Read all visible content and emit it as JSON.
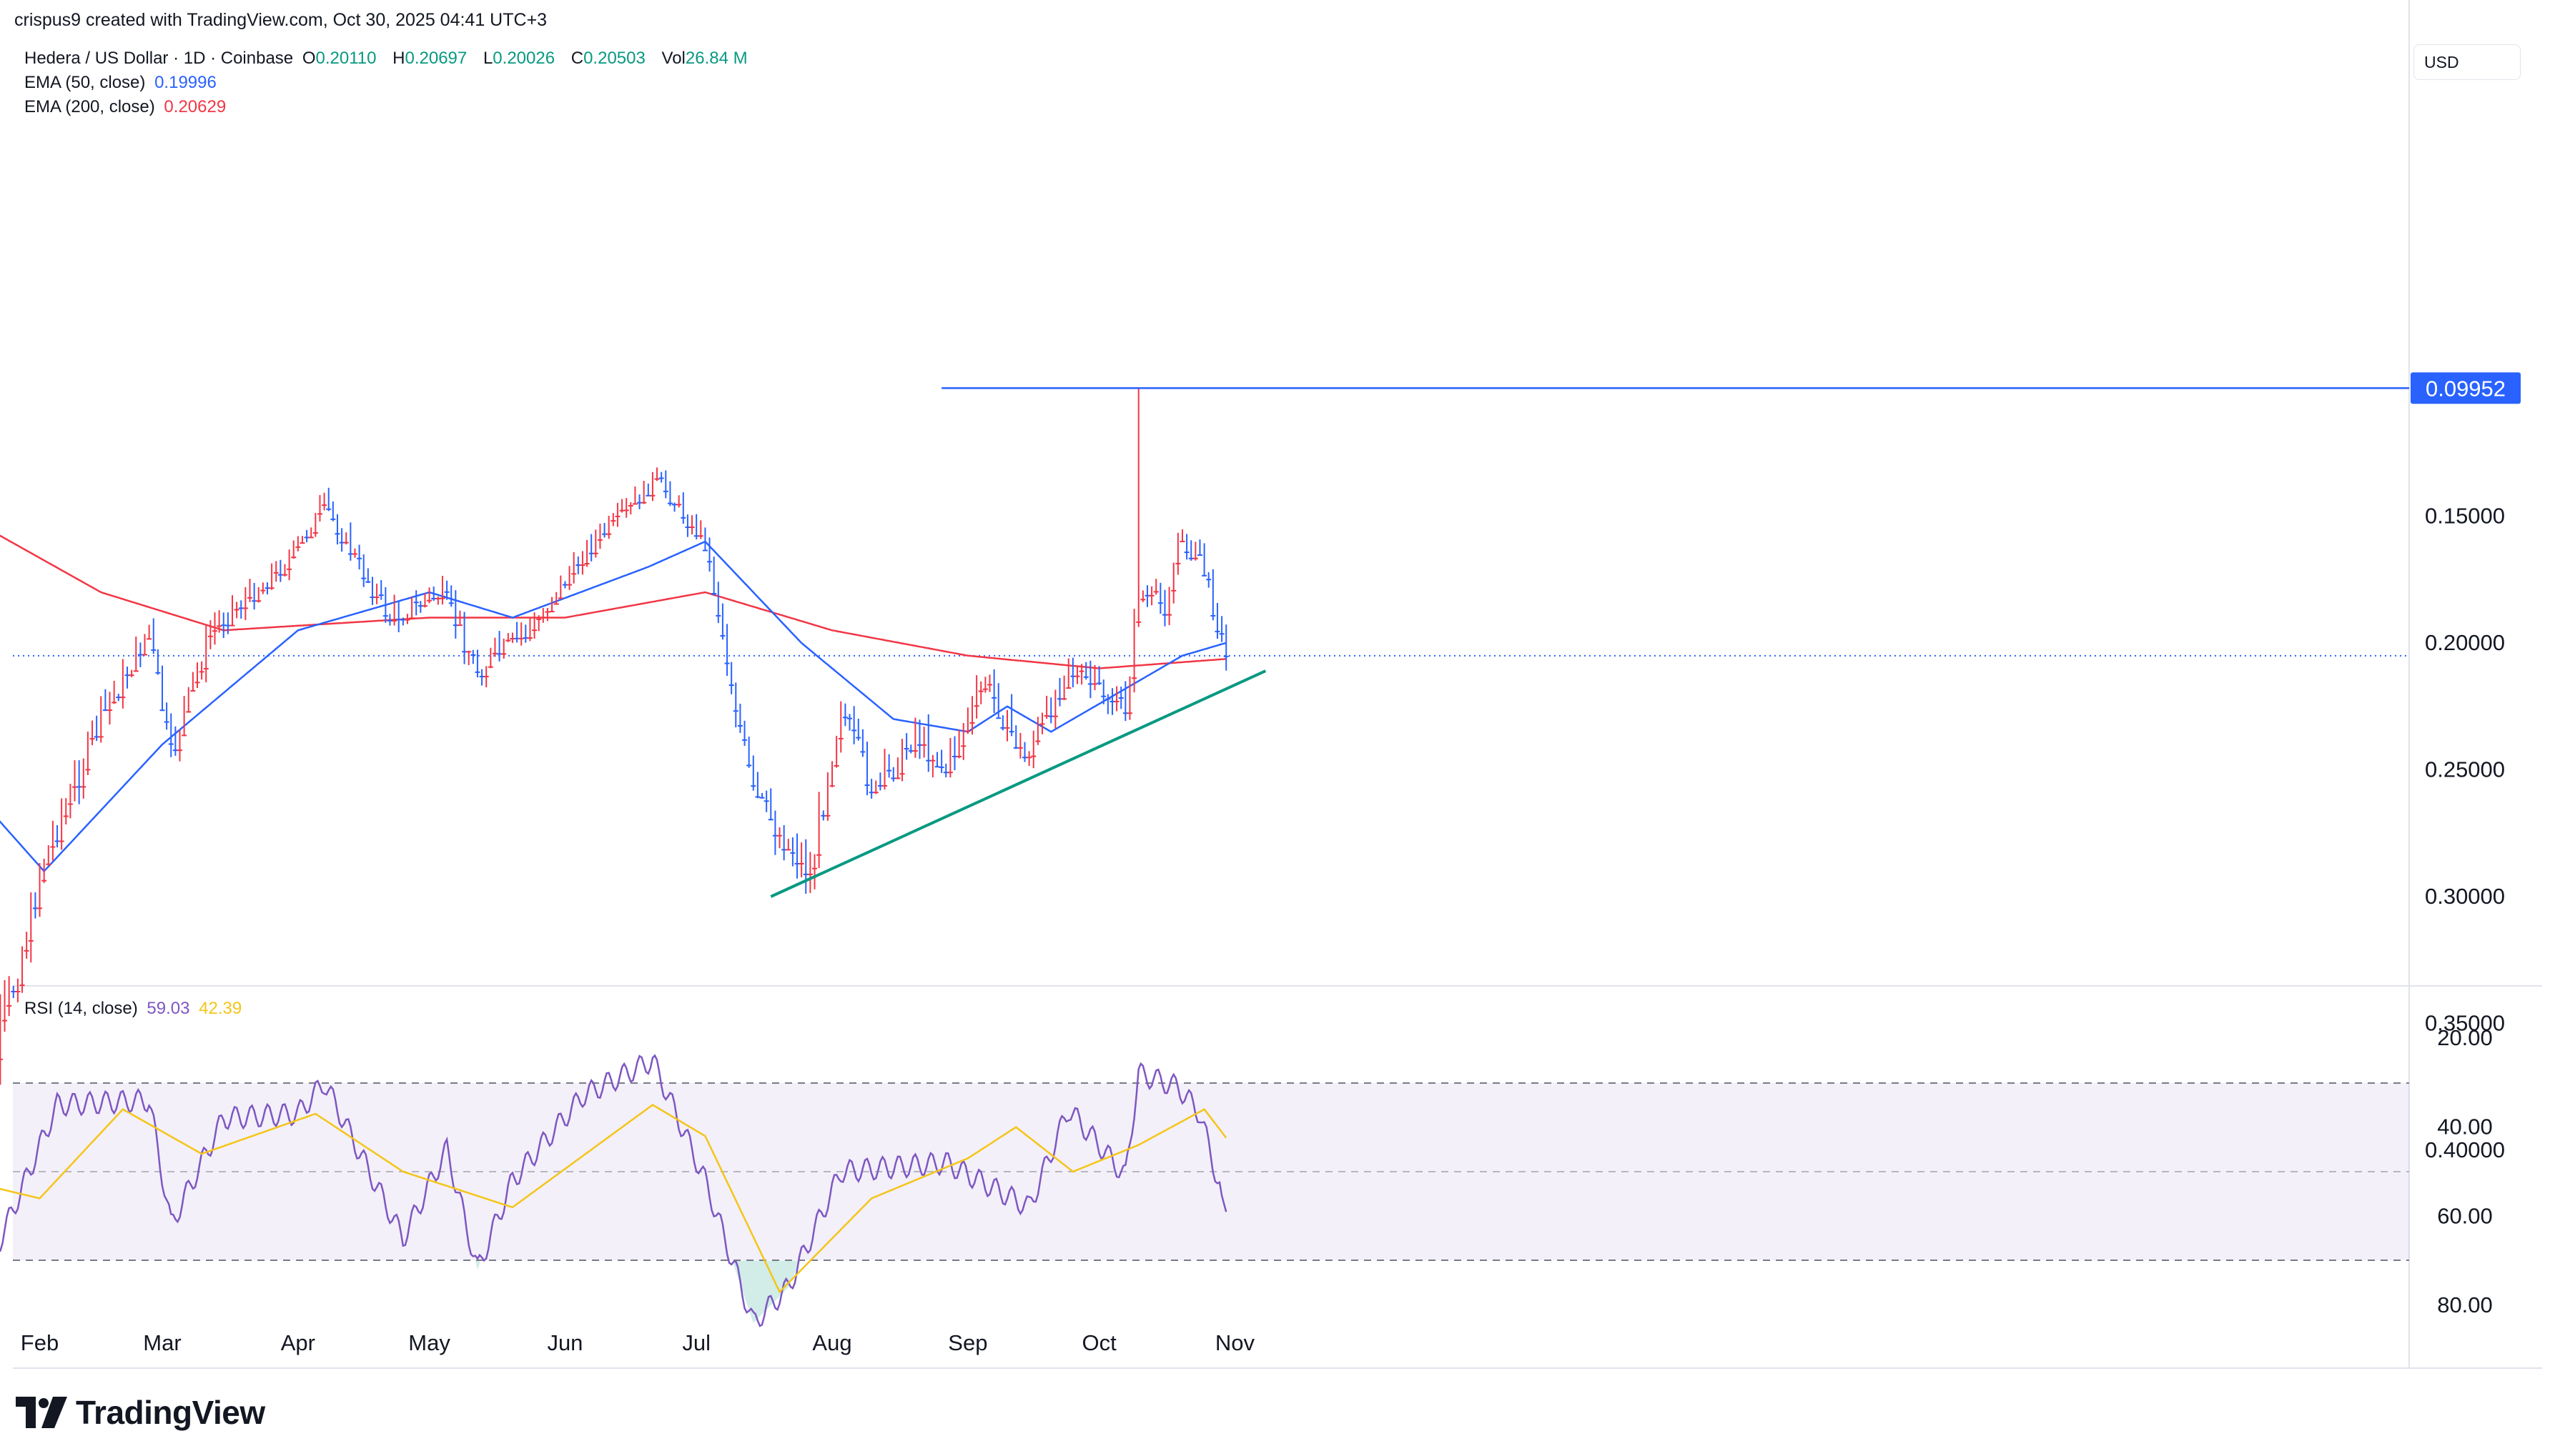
{
  "credit": "crispus9 created with TradingView.com, Oct 30, 2025 04:41 UTC+3",
  "legend": {
    "symbol": "Hedera / US Dollar · 1D · Coinbase",
    "open_label": "O",
    "open": "0.20110",
    "high_label": "H",
    "high": "0.20697",
    "low_label": "L",
    "low": "0.20026",
    "close_label": "C",
    "close": "0.20503",
    "vol_label": "Vol",
    "vol": "26.84 M",
    "ema50_label": "EMA (50, close)",
    "ema50_value": "0.19996",
    "ema200_label": "EMA (200, close)",
    "ema200_value": "0.20629",
    "rsi_label": "RSI (14, close)",
    "rsi_value": "59.03",
    "rsi_ma_value": "42.39"
  },
  "currency_button": "USD",
  "price_marker": "0.09952",
  "brand": "TradingView",
  "colors": {
    "up": "#2962ff",
    "down": "#f23645",
    "ema50": "#2962ff",
    "ema200": "#f23645",
    "trendline": "#089981",
    "rsi": "#7e57c2",
    "rsi_ma": "#f5c518",
    "support": "#2962ff"
  },
  "chart_data": [
    {
      "type": "candlestick",
      "title": "Hedera / US Dollar · 1D · Coinbase",
      "x_ticks": [
        "Feb",
        "Mar",
        "Apr",
        "May",
        "Jun",
        "Jul",
        "Aug",
        "Sep",
        "Oct",
        "Nov"
      ],
      "y_ticks": [
        "0.40000",
        "0.35000",
        "0.30000",
        "0.25000",
        "0.20000",
        "0.15000"
      ],
      "ylim": [
        0.08,
        0.41
      ],
      "last_price": 0.20503,
      "close_key_points": [
        {
          "date": "Jan 15",
          "close": 0.265
        },
        {
          "date": "Jan 21",
          "close": 0.37
        },
        {
          "date": "Feb 2",
          "close": 0.285
        },
        {
          "date": "Feb 15",
          "close": 0.23
        },
        {
          "date": "Feb 26",
          "close": 0.195
        },
        {
          "date": "Mar 3",
          "close": 0.245
        },
        {
          "date": "Mar 12",
          "close": 0.195
        },
        {
          "date": "Mar 31",
          "close": 0.165
        },
        {
          "date": "Apr 7",
          "close": 0.145
        },
        {
          "date": "Apr 22",
          "close": 0.19
        },
        {
          "date": "May 4",
          "close": 0.18
        },
        {
          "date": "May 12",
          "close": 0.21
        },
        {
          "date": "May 24",
          "close": 0.195
        },
        {
          "date": "Jun 5",
          "close": 0.165
        },
        {
          "date": "Jun 22",
          "close": 0.135
        },
        {
          "date": "Jul 3",
          "close": 0.16
        },
        {
          "date": "Jul 14",
          "close": 0.26
        },
        {
          "date": "Jul 27",
          "close": 0.29
        },
        {
          "date": "Aug 3",
          "close": 0.225
        },
        {
          "date": "Aug 11",
          "close": 0.26
        },
        {
          "date": "Aug 20",
          "close": 0.235
        },
        {
          "date": "Aug 27",
          "close": 0.25
        },
        {
          "date": "Sep 5",
          "close": 0.215
        },
        {
          "date": "Sep 14",
          "close": 0.245
        },
        {
          "date": "Sep 24",
          "close": 0.21
        },
        {
          "date": "Oct 7",
          "close": 0.225
        },
        {
          "date": "Oct 10",
          "close": 0.18
        },
        {
          "date": "Oct 16",
          "close": 0.185
        },
        {
          "date": "Oct 19",
          "close": 0.16
        },
        {
          "date": "Oct 24",
          "close": 0.165
        },
        {
          "date": "Oct 30",
          "close": 0.205
        }
      ],
      "ema50_points": [
        {
          "date": "Jan 15",
          "value": 0.255
        },
        {
          "date": "Feb 2",
          "value": 0.29
        },
        {
          "date": "Mar 1",
          "value": 0.24
        },
        {
          "date": "Apr 1",
          "value": 0.195
        },
        {
          "date": "May 1",
          "value": 0.18
        },
        {
          "date": "May 20",
          "value": 0.19
        },
        {
          "date": "Jun 20",
          "value": 0.17
        },
        {
          "date": "Jul 3",
          "value": 0.16
        },
        {
          "date": "Jul 25",
          "value": 0.2
        },
        {
          "date": "Aug 15",
          "value": 0.23
        },
        {
          "date": "Sep 1",
          "value": 0.235
        },
        {
          "date": "Sep 10",
          "value": 0.225
        },
        {
          "date": "Sep 20",
          "value": 0.235
        },
        {
          "date": "Oct 5",
          "value": 0.22
        },
        {
          "date": "Oct 20",
          "value": 0.205
        },
        {
          "date": "Oct 30",
          "value": 0.19996
        }
      ],
      "ema200_points": [
        {
          "date": "Jan 15",
          "value": 0.15
        },
        {
          "date": "Feb 15",
          "value": 0.18
        },
        {
          "date": "Mar 15",
          "value": 0.195
        },
        {
          "date": "May 1",
          "value": 0.19
        },
        {
          "date": "Jun 1",
          "value": 0.19
        },
        {
          "date": "Jul 3",
          "value": 0.18
        },
        {
          "date": "Aug 1",
          "value": 0.195
        },
        {
          "date": "Sep 1",
          "value": 0.205
        },
        {
          "date": "Oct 1",
          "value": 0.21
        },
        {
          "date": "Oct 30",
          "value": 0.20629
        }
      ],
      "annotations": [
        {
          "type": "trendline",
          "from": {
            "date": "Jul 18",
            "value": 0.3
          },
          "to": {
            "date": "Nov 8",
            "value": 0.211
          }
        },
        {
          "type": "horizontal_line",
          "from_date": "Aug 26",
          "value": 0.09952,
          "label": "0.09952"
        },
        {
          "type": "wick_low",
          "date": "Oct 10",
          "value": 0.09952
        }
      ]
    },
    {
      "type": "line",
      "title": "RSI (14, close)",
      "y_ticks": [
        "80.00",
        "60.00",
        "40.00",
        "20.00"
      ],
      "ylim": [
        15,
        88
      ],
      "bands": [
        70,
        50,
        30
      ],
      "series": [
        {
          "name": "RSI",
          "points": [
            {
              "date": "Jan 15",
              "value": 55
            },
            {
              "date": "Jan 21",
              "value": 70
            },
            {
              "date": "Feb 5",
              "value": 35
            },
            {
              "date": "Feb 26",
              "value": 34
            },
            {
              "date": "Mar 3",
              "value": 62
            },
            {
              "date": "Mar 15",
              "value": 38
            },
            {
              "date": "Apr 1",
              "value": 37
            },
            {
              "date": "Apr 7",
              "value": 30
            },
            {
              "date": "Apr 25",
              "value": 65
            },
            {
              "date": "May 5",
              "value": 45
            },
            {
              "date": "May 12",
              "value": 72
            },
            {
              "date": "May 20",
              "value": 52
            },
            {
              "date": "Jun 5",
              "value": 33
            },
            {
              "date": "Jun 21",
              "value": 25
            },
            {
              "date": "Jul 3",
              "value": 52
            },
            {
              "date": "Jul 14",
              "value": 84
            },
            {
              "date": "Jul 22",
              "value": 76
            },
            {
              "date": "Aug 3",
              "value": 50
            },
            {
              "date": "Aug 27",
              "value": 48
            },
            {
              "date": "Sep 15",
              "value": 58
            },
            {
              "date": "Sep 24",
              "value": 36
            },
            {
              "date": "Oct 7",
              "value": 51
            },
            {
              "date": "Oct 10",
              "value": 28
            },
            {
              "date": "Oct 19",
              "value": 31
            },
            {
              "date": "Oct 24",
              "value": 37
            },
            {
              "date": "Oct 30",
              "value": 59.03
            }
          ]
        },
        {
          "name": "RSI MA",
          "points": [
            {
              "date": "Jan 15",
              "value": 52
            },
            {
              "date": "Feb 1",
              "value": 56
            },
            {
              "date": "Feb 20",
              "value": 36
            },
            {
              "date": "Mar 10",
              "value": 46
            },
            {
              "date": "Apr 5",
              "value": 37
            },
            {
              "date": "Apr 25",
              "value": 50
            },
            {
              "date": "May 20",
              "value": 58
            },
            {
              "date": "Jun 21",
              "value": 35
            },
            {
              "date": "Jul 3",
              "value": 42
            },
            {
              "date": "Jul 20",
              "value": 77
            },
            {
              "date": "Aug 10",
              "value": 56
            },
            {
              "date": "Sep 1",
              "value": 47
            },
            {
              "date": "Sep 12",
              "value": 40
            },
            {
              "date": "Sep 25",
              "value": 50
            },
            {
              "date": "Oct 10",
              "value": 44
            },
            {
              "date": "Oct 25",
              "value": 36
            },
            {
              "date": "Oct 30",
              "value": 42.39
            }
          ]
        }
      ]
    }
  ]
}
